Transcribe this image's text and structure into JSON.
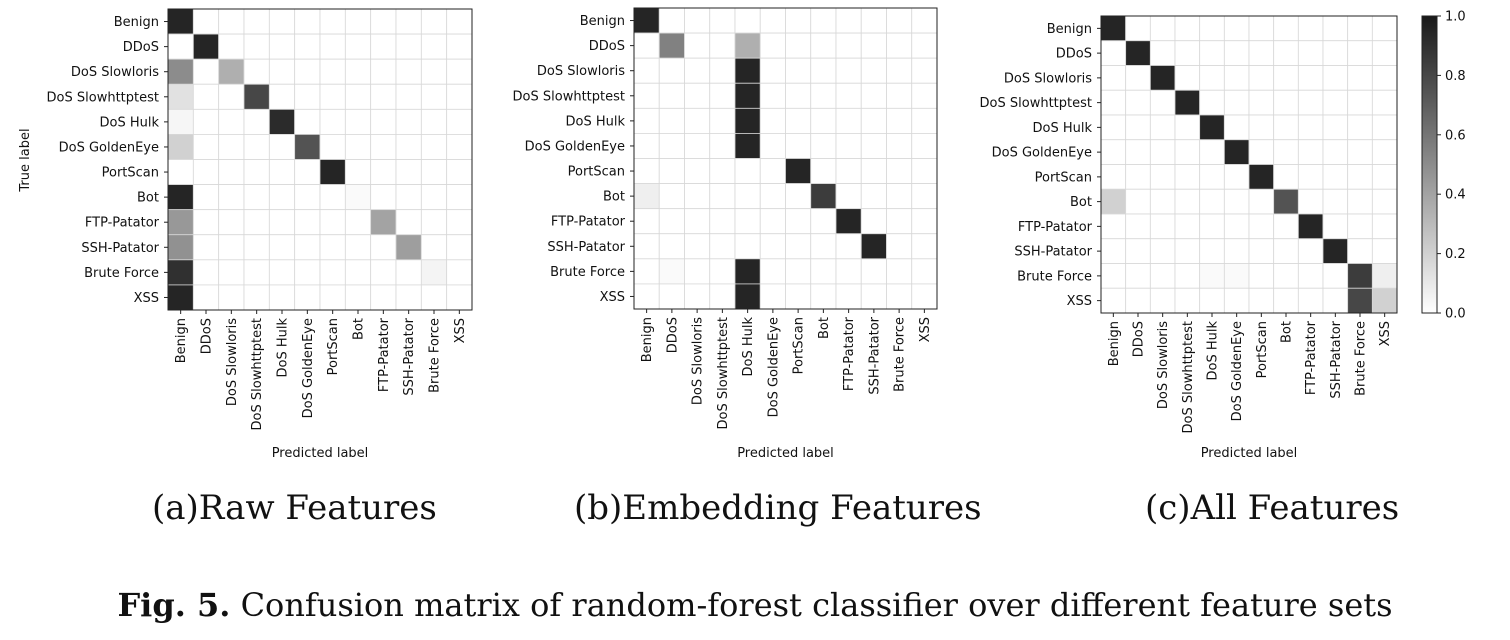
{
  "figure_caption": {
    "label": "Fig. 5.",
    "text": "Confusion matrix of random-forest classifier over different feature sets"
  },
  "classes": [
    "Benign",
    "DDoS",
    "DoS Slowloris",
    "DoS Slowhttptest",
    "DoS Hulk",
    "DoS GoldenEye",
    "PortScan",
    "Bot",
    "FTP-Patator",
    "SSH-Patator",
    "Brute Force",
    "XSS"
  ],
  "chart_data": [
    {
      "type": "heatmap",
      "caption": "(a)Raw Features",
      "xlabel": "Predicted label",
      "ylabel": "True label",
      "vlim": [
        0,
        1
      ],
      "cmap": "greys",
      "matrix": [
        [
          0.95,
          0,
          0,
          0,
          0,
          0,
          0,
          0,
          0,
          0,
          0,
          0
        ],
        [
          0,
          0.95,
          0,
          0,
          0,
          0,
          0,
          0,
          0,
          0,
          0,
          0
        ],
        [
          0.5,
          0,
          0.35,
          0,
          0,
          0,
          0,
          0,
          0,
          0,
          0,
          0
        ],
        [
          0.13,
          0,
          0,
          0.8,
          0,
          0,
          0,
          0,
          0,
          0,
          0,
          0
        ],
        [
          0.04,
          0,
          0,
          0,
          0.92,
          0,
          0,
          0,
          0,
          0,
          0,
          0
        ],
        [
          0.2,
          0,
          0,
          0,
          0,
          0.75,
          0,
          0,
          0,
          0,
          0,
          0
        ],
        [
          0,
          0,
          0,
          0,
          0,
          0,
          0.95,
          0,
          0,
          0,
          0,
          0
        ],
        [
          0.95,
          0,
          0,
          0,
          0,
          0,
          0,
          0.02,
          0,
          0,
          0,
          0
        ],
        [
          0.45,
          0,
          0,
          0,
          0,
          0,
          0,
          0,
          0.4,
          0,
          0,
          0
        ],
        [
          0.48,
          0,
          0,
          0,
          0,
          0,
          0,
          0,
          0,
          0.42,
          0,
          0
        ],
        [
          0.9,
          0,
          0,
          0,
          0,
          0,
          0,
          0,
          0,
          0,
          0.05,
          0
        ],
        [
          0.95,
          0,
          0,
          0,
          0,
          0,
          0,
          0,
          0,
          0,
          0,
          0
        ]
      ]
    },
    {
      "type": "heatmap",
      "caption": "(b)Embedding Features",
      "xlabel": "Predicted label",
      "ylabel": "",
      "vlim": [
        0,
        1
      ],
      "cmap": "greys",
      "matrix": [
        [
          0.95,
          0,
          0,
          0,
          0,
          0,
          0,
          0,
          0,
          0,
          0,
          0
        ],
        [
          0,
          0.55,
          0,
          0,
          0.35,
          0,
          0,
          0,
          0,
          0,
          0,
          0
        ],
        [
          0,
          0,
          0,
          0,
          0.95,
          0,
          0,
          0,
          0,
          0,
          0,
          0
        ],
        [
          0,
          0,
          0,
          0,
          0.95,
          0,
          0,
          0,
          0,
          0,
          0,
          0
        ],
        [
          0,
          0,
          0,
          0,
          0.95,
          0,
          0,
          0,
          0,
          0,
          0,
          0
        ],
        [
          0,
          0,
          0,
          0,
          0.95,
          0,
          0,
          0,
          0,
          0,
          0,
          0
        ],
        [
          0,
          0,
          0,
          0,
          0,
          0,
          0.95,
          0,
          0,
          0,
          0,
          0
        ],
        [
          0.07,
          0,
          0,
          0,
          0,
          0,
          0,
          0.85,
          0,
          0,
          0,
          0
        ],
        [
          0,
          0,
          0,
          0,
          0,
          0,
          0,
          0,
          0.95,
          0,
          0,
          0
        ],
        [
          0,
          0,
          0,
          0,
          0,
          0,
          0,
          0,
          0,
          0.95,
          0,
          0
        ],
        [
          0,
          0.02,
          0,
          0,
          0.95,
          0,
          0,
          0,
          0,
          0,
          0,
          0
        ],
        [
          0,
          0,
          0,
          0,
          0.95,
          0,
          0,
          0,
          0,
          0,
          0,
          0
        ]
      ]
    },
    {
      "type": "heatmap",
      "caption": "(c)All Features",
      "xlabel": "Predicted label",
      "ylabel": "",
      "vlim": [
        0,
        1
      ],
      "cmap": "greys",
      "colorbar_ticks": [
        "0.0",
        "0.2",
        "0.4",
        "0.6",
        "0.8",
        "1.0"
      ],
      "matrix": [
        [
          0.95,
          0,
          0,
          0,
          0,
          0,
          0,
          0,
          0,
          0,
          0,
          0
        ],
        [
          0,
          0.95,
          0,
          0,
          0,
          0,
          0,
          0,
          0,
          0,
          0,
          0
        ],
        [
          0,
          0,
          0.95,
          0,
          0,
          0,
          0,
          0,
          0,
          0,
          0,
          0
        ],
        [
          0,
          0,
          0,
          0.95,
          0,
          0,
          0,
          0,
          0,
          0,
          0,
          0
        ],
        [
          0,
          0,
          0,
          0,
          0.95,
          0,
          0,
          0,
          0,
          0,
          0,
          0
        ],
        [
          0,
          0,
          0,
          0,
          0,
          0.95,
          0,
          0,
          0,
          0,
          0,
          0
        ],
        [
          0,
          0,
          0,
          0,
          0,
          0,
          0.95,
          0,
          0,
          0,
          0,
          0
        ],
        [
          0.2,
          0,
          0,
          0,
          0,
          0,
          0,
          0.75,
          0,
          0,
          0,
          0
        ],
        [
          0,
          0,
          0,
          0,
          0,
          0,
          0,
          0,
          0.95,
          0,
          0,
          0
        ],
        [
          0,
          0,
          0,
          0,
          0,
          0,
          0,
          0,
          0,
          0.95,
          0,
          0
        ],
        [
          0,
          0,
          0,
          0,
          0.02,
          0.02,
          0,
          0,
          0,
          0,
          0.85,
          0.07
        ],
        [
          0,
          0,
          0,
          0,
          0,
          0,
          0,
          0,
          0,
          0,
          0.8,
          0.2
        ]
      ]
    }
  ]
}
